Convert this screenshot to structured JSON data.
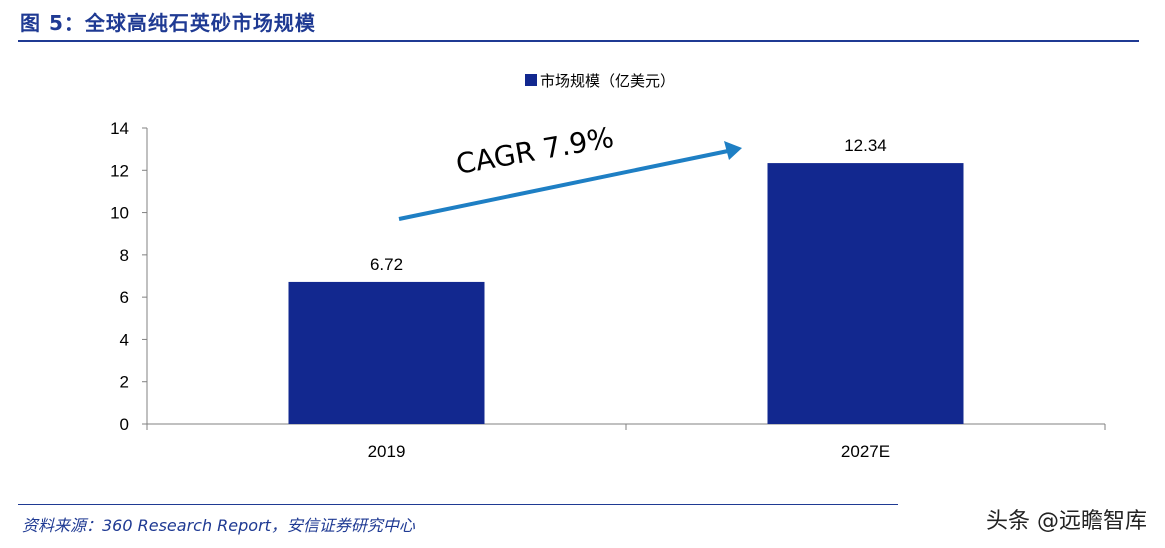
{
  "header": {
    "figure_title": "图 5：全球高纯石英砂市场规模"
  },
  "chart_data": {
    "type": "bar",
    "categories": [
      "2019",
      "2027E"
    ],
    "series": [
      {
        "name": "市场规模（亿美元）",
        "values": [
          6.72,
          12.34
        ]
      }
    ],
    "data_labels": [
      "6.72",
      "12.34"
    ],
    "ylim": [
      0,
      14
    ],
    "yticks": [
      0,
      2,
      4,
      6,
      8,
      10,
      12,
      14
    ],
    "annotation": "CAGR 7.9%",
    "bar_color": "#12288f",
    "arrow_color": "#1e7fc4"
  },
  "footer": {
    "source": "资料来源：360 Research Report，安信证券研究中心"
  },
  "watermark": "头条 @远瞻智库"
}
